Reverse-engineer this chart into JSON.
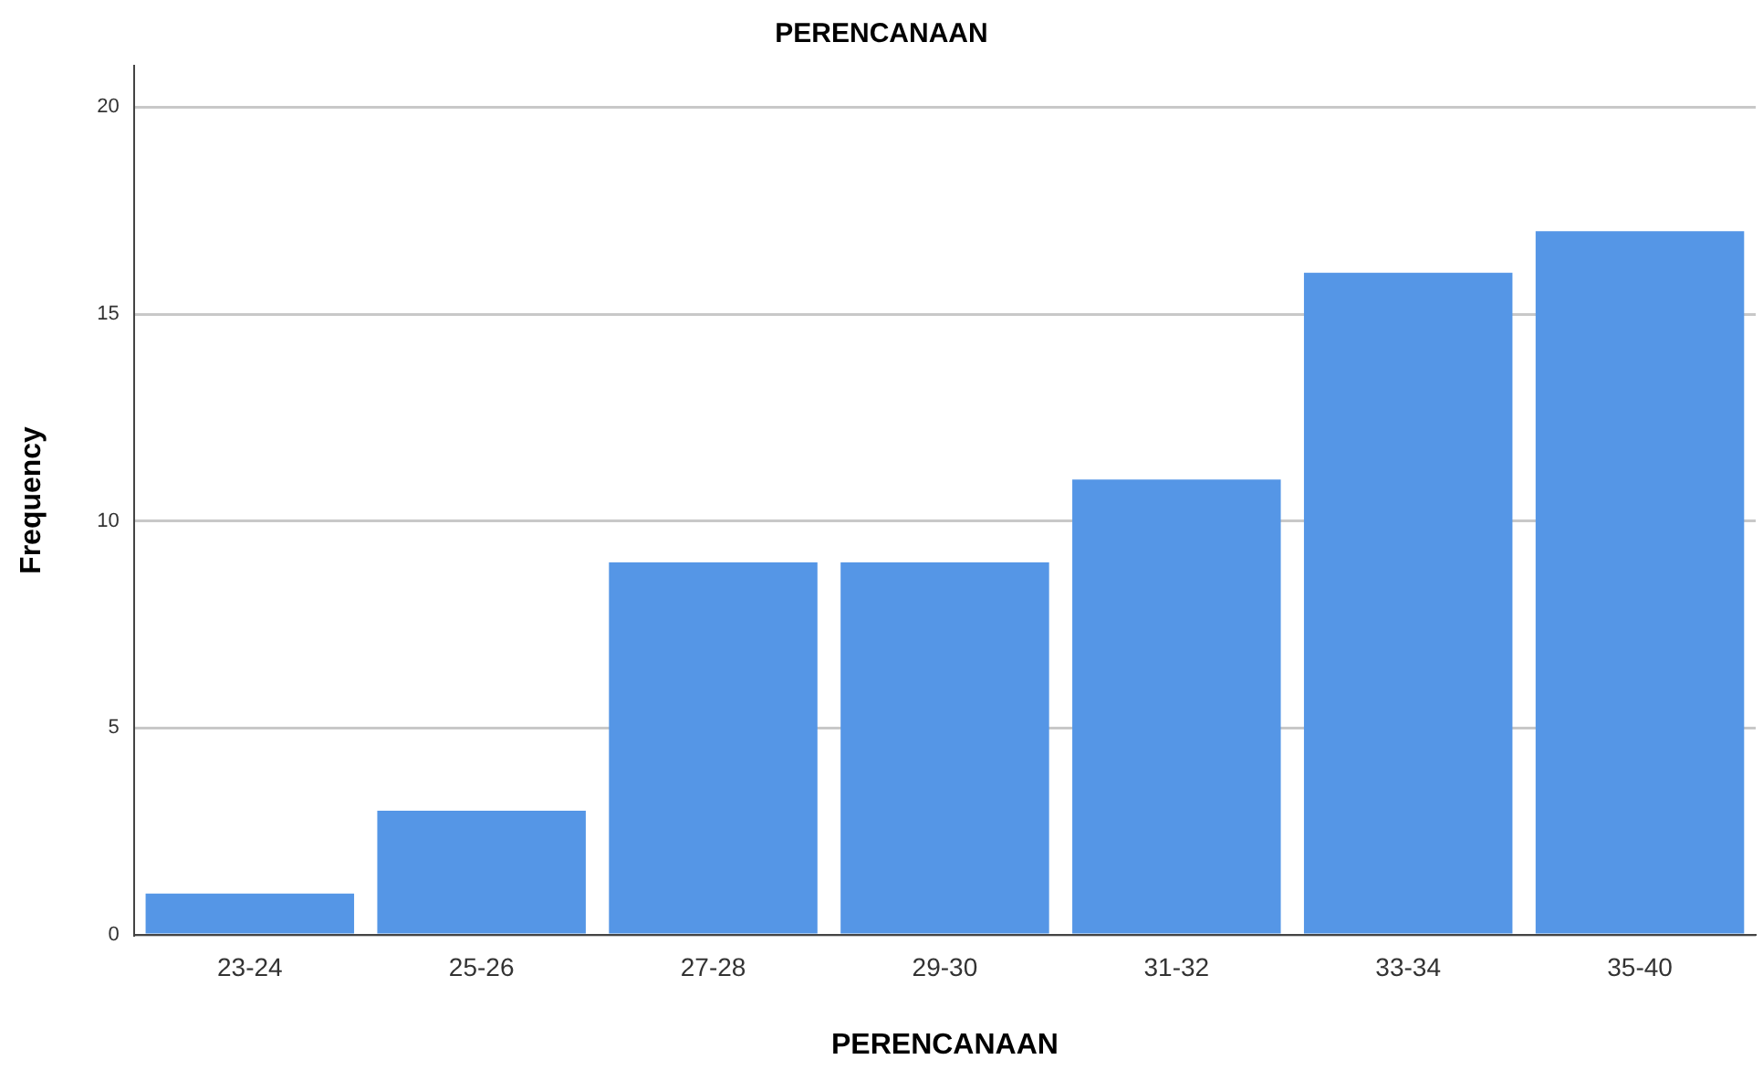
{
  "chart_data": {
    "type": "bar",
    "title": "PERENCANAAN",
    "xlabel": "PERENCANAAN",
    "ylabel": "Frequency",
    "categories": [
      "23-24",
      "25-26",
      "27-28",
      "29-30",
      "31-32",
      "33-34",
      "35-40"
    ],
    "values": [
      1,
      3,
      9,
      9,
      11,
      16,
      17
    ],
    "color": "#5596e6",
    "ylim": [
      0,
      21
    ],
    "yticks": [
      0,
      5,
      10,
      15,
      20
    ],
    "grid": "y"
  }
}
